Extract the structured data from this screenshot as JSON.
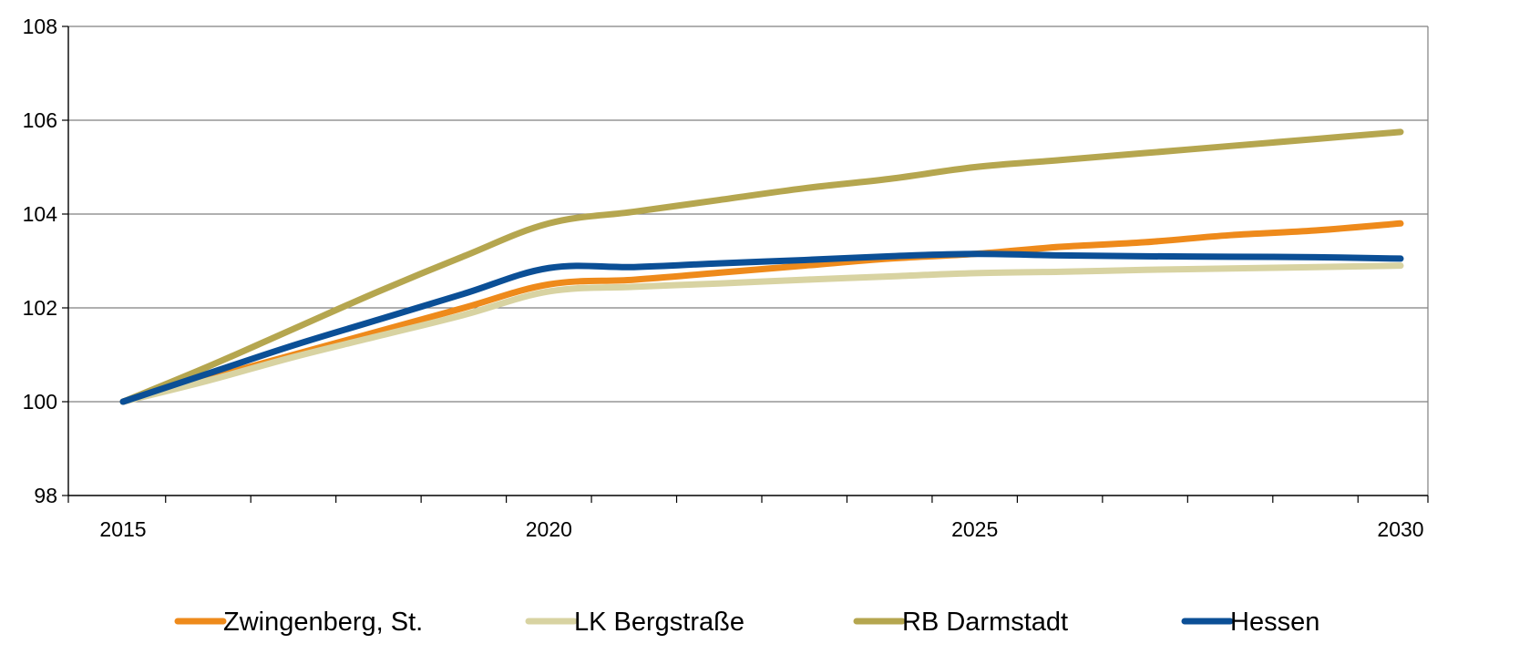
{
  "chart_data": {
    "type": "line",
    "title": "",
    "xlabel": "",
    "ylabel": "",
    "x": [
      2015,
      2016,
      2017,
      2018,
      2019,
      2020,
      2021,
      2022,
      2023,
      2024,
      2025,
      2026,
      2027,
      2028,
      2029,
      2030
    ],
    "x_tick_labels": [
      "2015",
      "2020",
      "2025",
      "2030"
    ],
    "x_tick_values": [
      2015,
      2020,
      2025,
      2030
    ],
    "ylim": [
      98,
      108
    ],
    "y_ticks": [
      98,
      100,
      102,
      104,
      106,
      108
    ],
    "y_tick_labels": [
      "98",
      "100",
      "102",
      "104",
      "106",
      "108"
    ],
    "grid": "horizontal",
    "legend_position": "bottom",
    "series": [
      {
        "name": "Zwingenberg, St.",
        "color": "#EE8A1B",
        "values": [
          100.0,
          100.5,
          101.0,
          101.5,
          102.0,
          102.5,
          102.6,
          102.75,
          102.9,
          103.05,
          103.15,
          103.3,
          103.4,
          103.55,
          103.65,
          103.8
        ]
      },
      {
        "name": "LK Bergstraße",
        "color": "#D8D3A2",
        "values": [
          100.0,
          100.45,
          100.95,
          101.4,
          101.85,
          102.35,
          102.45,
          102.52,
          102.6,
          102.67,
          102.74,
          102.77,
          102.81,
          102.84,
          102.87,
          102.9
        ]
      },
      {
        "name": "RB Darmstadt",
        "color": "#B5A64F",
        "values": [
          100.0,
          100.75,
          101.55,
          102.35,
          103.1,
          103.8,
          104.05,
          104.3,
          104.55,
          104.75,
          105.0,
          105.15,
          105.3,
          105.45,
          105.6,
          105.75
        ]
      },
      {
        "name": "Hessen",
        "color": "#0B4F96",
        "values": [
          100.0,
          100.6,
          101.2,
          101.75,
          102.3,
          102.85,
          102.87,
          102.95,
          103.02,
          103.1,
          103.15,
          103.12,
          103.1,
          103.09,
          103.08,
          103.05
        ]
      }
    ]
  }
}
